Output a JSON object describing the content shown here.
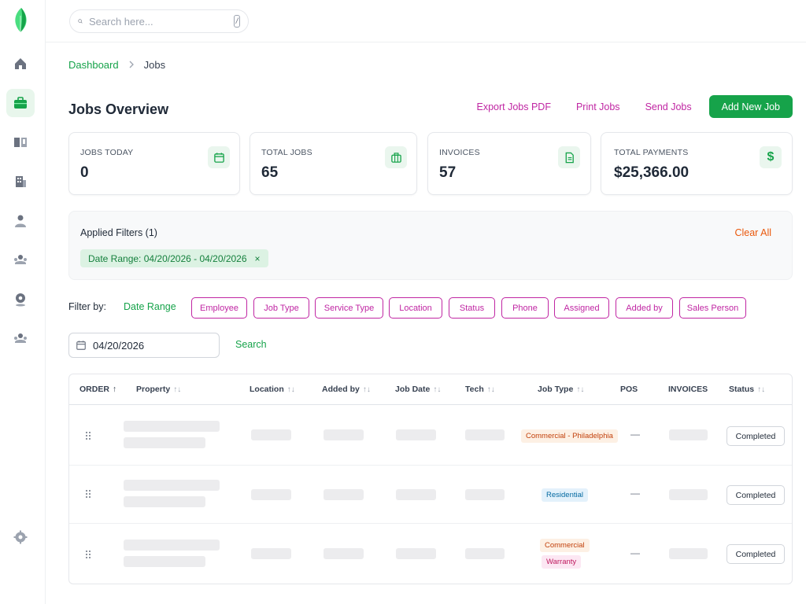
{
  "brand": {
    "accent": "#16a34a",
    "link": "#c026a3",
    "danger": "#ea580c"
  },
  "sidebar": {
    "items": [
      {
        "icon": "home-icon"
      },
      {
        "icon": "briefcase-icon",
        "active": true
      },
      {
        "icon": "book-icon"
      },
      {
        "icon": "building-icon"
      },
      {
        "icon": "user-icon"
      },
      {
        "icon": "users-icon"
      },
      {
        "icon": "map-pin-icon"
      },
      {
        "icon": "team-icon"
      }
    ],
    "settings_icon": "gear-icon"
  },
  "search": {
    "placeholder": "Search here...",
    "shortcut": "/"
  },
  "breadcrumb": {
    "root": "Dashboard",
    "separator": ">",
    "current": "Jobs"
  },
  "page": {
    "title": "Jobs Overview"
  },
  "actions": {
    "export": "Export Jobs PDF",
    "print": "Print Jobs",
    "send": "Send Jobs",
    "add": "Add New Job"
  },
  "stats": [
    {
      "label": "JOBS TODAY",
      "value": "0",
      "icon": "calendar-icon"
    },
    {
      "label": "TOTAL JOBS",
      "value": "65",
      "icon": "briefcase-icon"
    },
    {
      "label": "INVOICES",
      "value": "57",
      "icon": "document-icon"
    },
    {
      "label": "TOTAL PAYMENTS",
      "value": "$25,366.00",
      "icon": "dollar-icon"
    }
  ],
  "applied_filters": {
    "title": "Applied Filters (1)",
    "clear": "Clear All",
    "chip_label": "Date Range:",
    "chip_value": "04/20/2026 - 04/20/2026",
    "chip_remove": "×"
  },
  "filter_bar": {
    "label": "Filter by:",
    "active": "Date Range",
    "pills": [
      "Employee",
      "Job Type",
      "Service Type",
      "Location",
      "Status",
      "Phone",
      "Assigned",
      "Added by",
      "Sales Person"
    ]
  },
  "date_filter": {
    "value": "04/20/2026",
    "search": "Search"
  },
  "table": {
    "headers": [
      "ORDER",
      "Property",
      "Location",
      "Added by",
      "Job Date",
      "Tech",
      "Job Type",
      "POS",
      "INVOICES",
      "Status"
    ],
    "order_arrow": "↑",
    "sort_glyph": "↑↓",
    "rows": [
      {
        "job_types": [
          "Commercial - Philadelphia"
        ],
        "pos": "—",
        "status": "Completed"
      },
      {
        "job_types": [
          "Residential"
        ],
        "pos": "—",
        "status": "Completed"
      },
      {
        "job_types": [
          "Commercial",
          "Warranty"
        ],
        "pos": "—",
        "status": "Completed"
      }
    ]
  }
}
